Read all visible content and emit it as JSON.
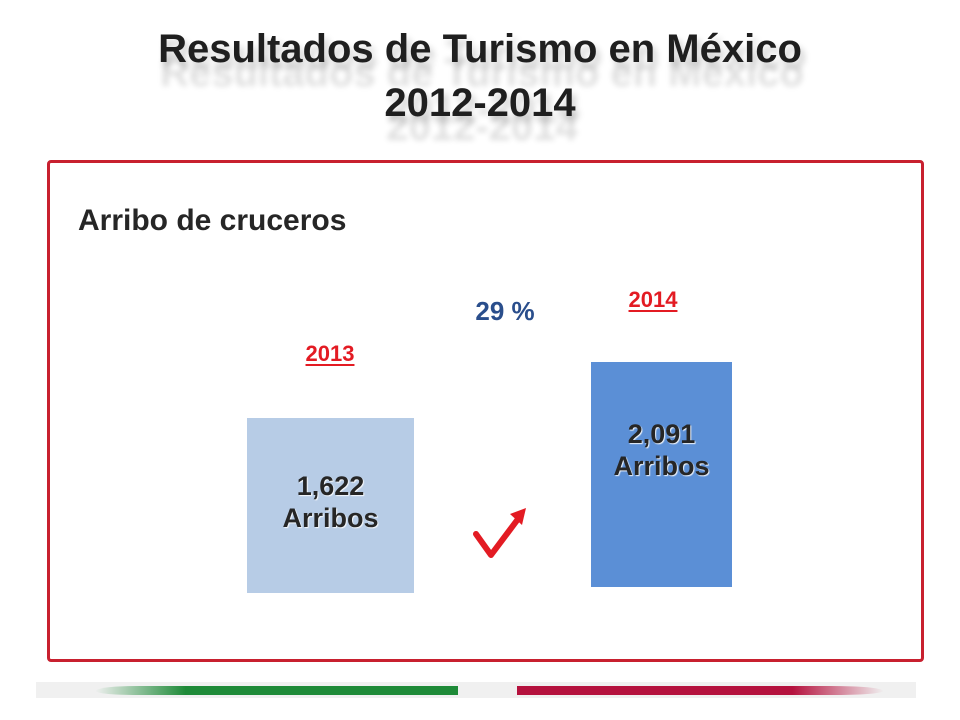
{
  "slide": {
    "title_line1": "Resultados de Turismo en México",
    "title_line2": "2012-2014",
    "subtitle": "Arribo de cruceros",
    "change_label": "29 %"
  },
  "colors": {
    "accent_red": "#c8202f",
    "bar_2013": "#b7cce6",
    "bar_2014": "#5b8fd6",
    "change_text": "#2a4e8c",
    "check_red": "#e31b23",
    "stripe_green": "#1e8a38",
    "stripe_red": "#b5123e"
  },
  "icons": {
    "trend": "check-arrow-icon"
  },
  "chart_data": {
    "type": "bar",
    "categories": [
      "2013",
      "2014"
    ],
    "values": [
      1622,
      2091
    ],
    "value_labels": [
      "1,622",
      "2,091"
    ],
    "unit_label": "Arribos",
    "title": "Arribo de cruceros",
    "xlabel": "",
    "ylabel": "",
    "grid": false,
    "legend": "none"
  }
}
